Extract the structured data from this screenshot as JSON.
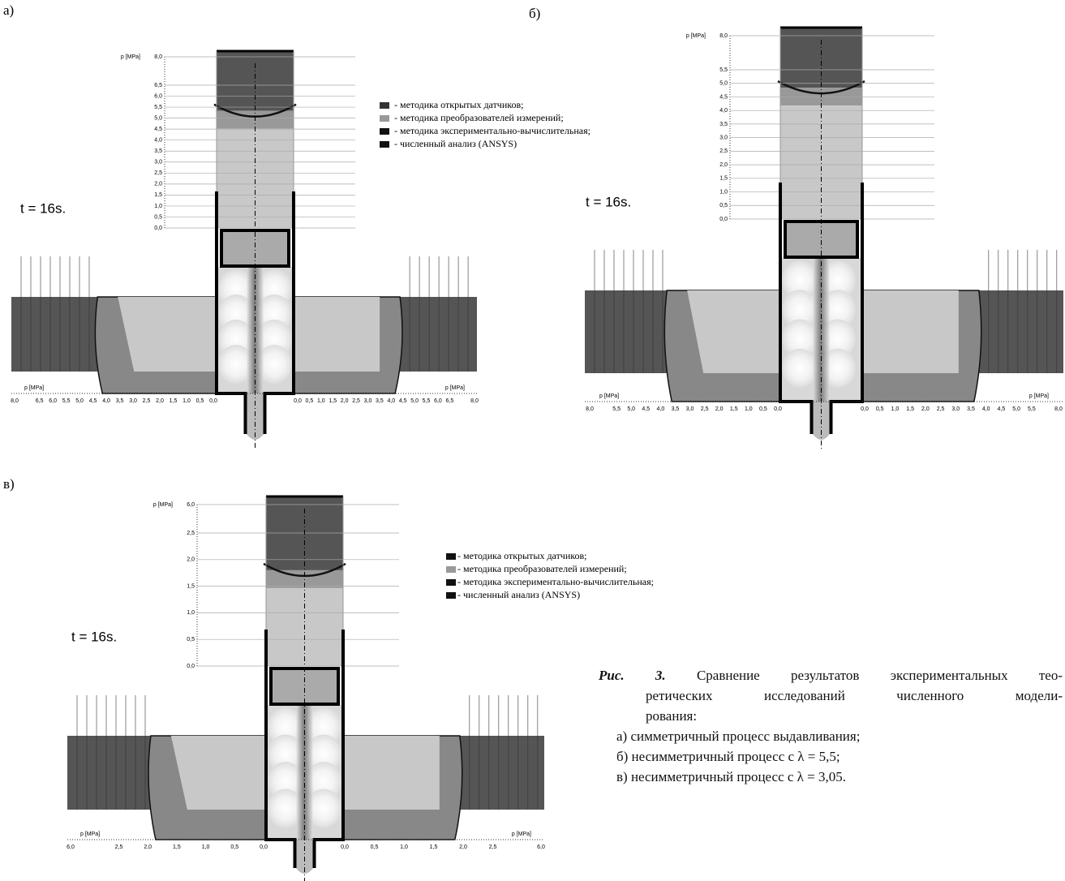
{
  "panels": [
    {
      "label": "а)",
      "time": "t = 16s.",
      "y_axis": {
        "label": "p [MPa]",
        "ticks": [
          "8,0",
          "6,5",
          "6,0",
          "5,5",
          "5,0",
          "4,5",
          "4,0",
          "3,5",
          "3,0",
          "2,5",
          "2,0",
          "1,5",
          "1,0",
          "0,5",
          "0,0"
        ]
      },
      "x_axis": {
        "left_label": "p [MPa]",
        "right_label": "p [MPa]",
        "left_ticks": [
          "8,0",
          "6,5",
          "6,0",
          "5,5",
          "5,0",
          "4,5",
          "4,0",
          "3,5",
          "3,0",
          "2,5",
          "2,0",
          "1,5",
          "1,0",
          "0,5",
          "0,0"
        ],
        "right_ticks": [
          "0,0",
          "0,5",
          "1,0",
          "1,5",
          "2,0",
          "2,5",
          "3,0",
          "3,5",
          "4,0",
          "4,5",
          "5,0",
          "5,5",
          "6,0",
          "6,5",
          "8,0"
        ]
      }
    },
    {
      "label": "б)",
      "time": "t = 16s.",
      "y_axis": {
        "label": "p [MPa]",
        "ticks": [
          "8,0",
          "5,5",
          "5,0",
          "4,5",
          "4,0",
          "3,5",
          "3,0",
          "2,5",
          "2,0",
          "1,5",
          "1,0",
          "0,5",
          "0,0"
        ]
      },
      "x_axis": {
        "left_label": "p [MPa]",
        "right_label": "p [MPa]",
        "left_ticks": [
          "8,0",
          "5,5",
          "5,0",
          "4,5",
          "4,0",
          "3,5",
          "3,0",
          "2,5",
          "2,0",
          "1,5",
          "1,0",
          "0,5",
          "0,0"
        ],
        "right_ticks": [
          "0,0",
          "0,5",
          "1,0",
          "1,5",
          "2,0",
          "2,5",
          "3,0",
          "3,5",
          "4,0",
          "4,5",
          "5,0",
          "5,5",
          "8,0"
        ]
      }
    },
    {
      "label": "в)",
      "time": "t = 16s.",
      "y_axis": {
        "label": "p [MPa]",
        "ticks": [
          "6,0",
          "2,5",
          "2,0",
          "1,5",
          "1,0",
          "0,5",
          "0,0"
        ]
      },
      "x_axis": {
        "left_label": "p [MPa]",
        "right_label": "p [MPa]",
        "left_ticks": [
          "6,0",
          "2,5",
          "2,0",
          "1,5",
          "1,0",
          "0,5",
          "0,0"
        ],
        "right_ticks": [
          "0,0",
          "0,5",
          "1,0",
          "1,5",
          "2,0",
          "2,5",
          "6,0"
        ]
      }
    }
  ],
  "legends": [
    {
      "items": [
        "- методика открытых датчиков;",
        "- методика преобразователей измерений;",
        "- методика экспериментально-вычислительная;",
        "- численный анализ (ANSYS)"
      ]
    },
    {
      "items": [
        "- методика открытых датчиков;",
        "- методика преобразователей измерений;",
        "- методика экспериментально-вычислительная;",
        "- численный анализ (ANSYS)"
      ]
    }
  ],
  "caption": {
    "label": "Рис. 3.",
    "lines": [
      "Сравнение результатов экспериментальных тео-",
      "ретических исследований численного модели-",
      "рования:"
    ],
    "items": [
      "а) симметричный процесс выдавливания;",
      "б) несимметричный процесс с λ = 5,5;",
      "в) несимметричный процесс с λ = 3,05."
    ]
  }
}
